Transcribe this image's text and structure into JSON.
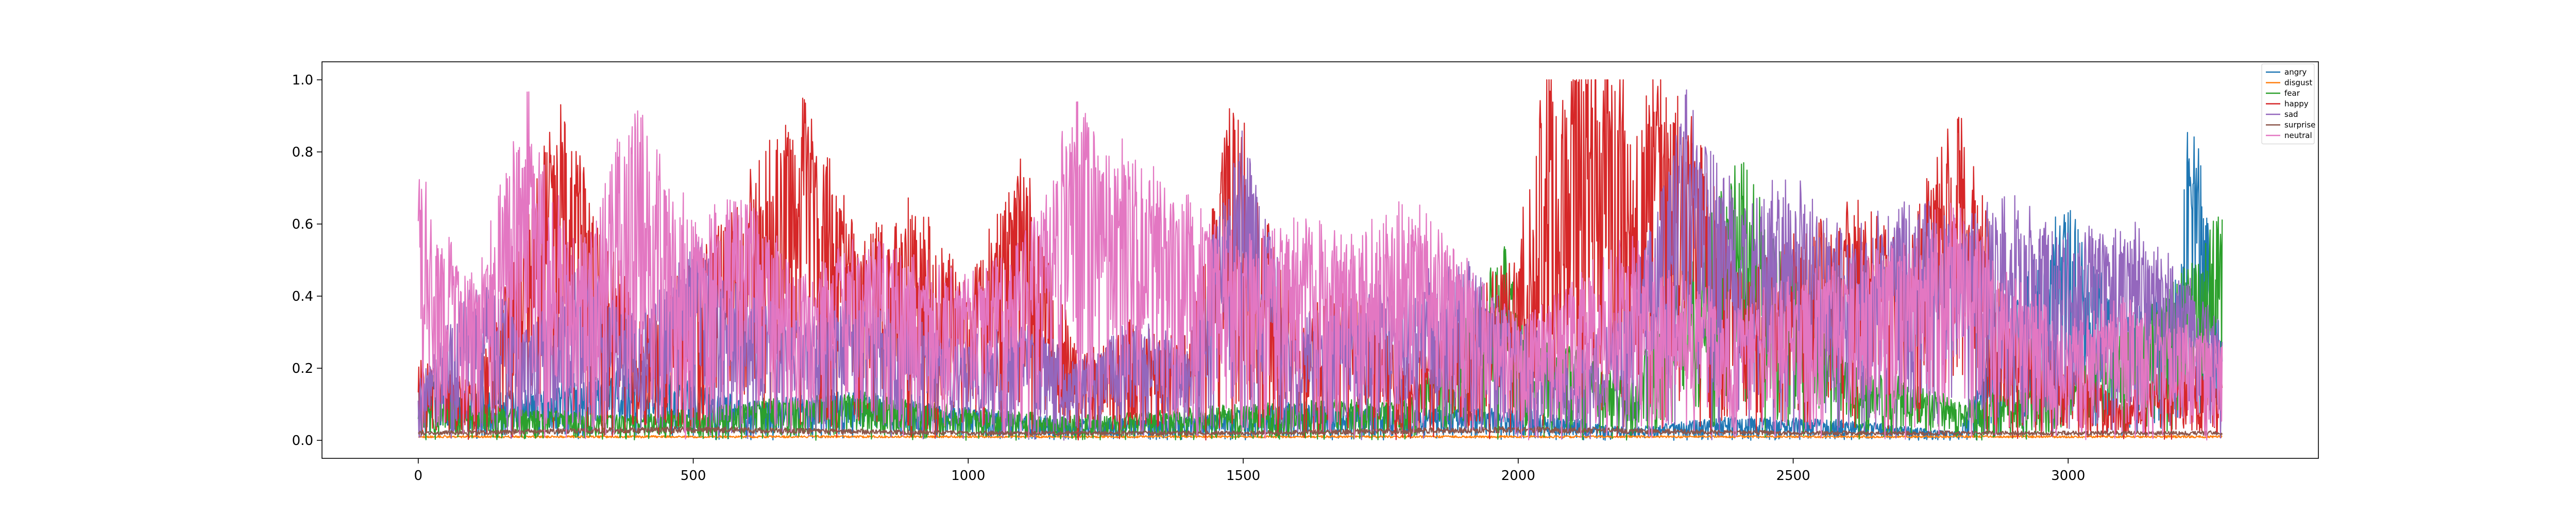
{
  "chart_data": {
    "type": "line",
    "title": "",
    "xlabel": "",
    "ylabel": "",
    "xlim": [
      -175,
      3455
    ],
    "ylim": [
      -0.05,
      1.05
    ],
    "x_range": [
      0,
      3280
    ],
    "xticks": [
      0,
      500,
      1000,
      1500,
      2000,
      2500,
      3000
    ],
    "xtick_labels": [
      "0",
      "500",
      "1000",
      "1500",
      "2000",
      "2500",
      "3000"
    ],
    "yticks": [
      0.0,
      0.2,
      0.4,
      0.6,
      0.8,
      1.0
    ],
    "ytick_labels": [
      "0.0",
      "0.2",
      "0.4",
      "0.6",
      "0.8",
      "1.0"
    ],
    "grid": false,
    "legend_position": "top-right",
    "series": [
      {
        "name": "angry",
        "color": "#1f77b4",
        "x": [
          0,
          200,
          400,
          600,
          800,
          1000,
          1200,
          1400,
          1600,
          1800,
          2000,
          2200,
          2400,
          2600,
          2800,
          2900,
          3000,
          3100,
          3200,
          3220,
          3280
        ],
        "values": [
          0.15,
          0.12,
          0.18,
          0.1,
          0.12,
          0.08,
          0.05,
          0.06,
          0.1,
          0.08,
          0.08,
          0.03,
          0.06,
          0.05,
          0.02,
          0.35,
          0.6,
          0.3,
          0.4,
          0.9,
          0.25
        ]
      },
      {
        "name": "disgust",
        "color": "#ff7f0e",
        "x": [
          0,
          500,
          1000,
          1500,
          2000,
          2500,
          3000,
          3280
        ],
        "values": [
          0.01,
          0.01,
          0.01,
          0.01,
          0.01,
          0.01,
          0.01,
          0.01
        ]
      },
      {
        "name": "fear",
        "color": "#2ca02c",
        "x": [
          0,
          200,
          400,
          600,
          800,
          1000,
          1200,
          1400,
          1600,
          1800,
          1980,
          2000,
          2200,
          2400,
          2600,
          2800,
          3000,
          3200,
          3280
        ],
        "values": [
          0.1,
          0.08,
          0.06,
          0.1,
          0.12,
          0.08,
          0.06,
          0.08,
          0.1,
          0.1,
          0.5,
          0.3,
          0.15,
          0.7,
          0.2,
          0.1,
          0.15,
          0.4,
          0.57
        ]
      },
      {
        "name": "happy",
        "color": "#d62728",
        "x": [
          0,
          100,
          260,
          400,
          500,
          700,
          800,
          900,
          1000,
          1100,
          1200,
          1300,
          1400,
          1480,
          1600,
          1700,
          1800,
          1900,
          2000,
          2050,
          2120,
          2200,
          2300,
          2400,
          2500,
          2600,
          2700,
          2800,
          2900,
          3000,
          3100,
          3200,
          3280
        ],
        "values": [
          0.2,
          0.15,
          0.85,
          0.3,
          0.45,
          0.85,
          0.5,
          0.6,
          0.4,
          0.7,
          0.2,
          0.3,
          0.25,
          0.87,
          0.3,
          0.4,
          0.2,
          0.3,
          0.5,
          0.9,
          1.0,
          0.9,
          0.85,
          0.45,
          0.5,
          0.6,
          0.5,
          0.83,
          0.3,
          0.2,
          0.1,
          0.2,
          0.15
        ]
      },
      {
        "name": "sad",
        "color": "#9467bd",
        "x": [
          0,
          100,
          200,
          300,
          400,
          500,
          600,
          700,
          800,
          900,
          1000,
          1100,
          1200,
          1300,
          1400,
          1500,
          1600,
          1700,
          1800,
          1900,
          2000,
          2100,
          2200,
          2300,
          2400,
          2500,
          2600,
          2700,
          2800,
          2900,
          3000,
          3100,
          3200,
          3280
        ],
        "values": [
          0.15,
          0.4,
          0.3,
          0.45,
          0.3,
          0.5,
          0.4,
          0.3,
          0.35,
          0.3,
          0.25,
          0.3,
          0.2,
          0.3,
          0.25,
          0.8,
          0.3,
          0.35,
          0.4,
          0.45,
          0.3,
          0.2,
          0.35,
          0.88,
          0.6,
          0.65,
          0.5,
          0.6,
          0.55,
          0.6,
          0.5,
          0.55,
          0.45,
          0.3
        ]
      },
      {
        "name": "surprise",
        "color": "#8c564b",
        "x": [
          0,
          500,
          1000,
          1500,
          2000,
          2500,
          3000,
          3280
        ],
        "values": [
          0.02,
          0.03,
          0.02,
          0.02,
          0.03,
          0.02,
          0.02,
          0.02
        ]
      },
      {
        "name": "neutral",
        "color": "#e377c2",
        "x": [
          0,
          30,
          100,
          200,
          250,
          300,
          390,
          500,
          600,
          700,
          800,
          900,
          1000,
          1100,
          1200,
          1300,
          1400,
          1500,
          1600,
          1700,
          1800,
          1900,
          2000,
          2100,
          2200,
          2300,
          2400,
          2500,
          2600,
          2700,
          2800,
          2900,
          3000,
          3100,
          3200,
          3280
        ],
        "values": [
          0.7,
          0.55,
          0.4,
          0.85,
          0.6,
          0.5,
          0.85,
          0.55,
          0.6,
          0.4,
          0.5,
          0.45,
          0.4,
          0.5,
          0.85,
          0.7,
          0.6,
          0.5,
          0.55,
          0.5,
          0.6,
          0.45,
          0.3,
          0.4,
          0.5,
          0.4,
          0.35,
          0.4,
          0.45,
          0.5,
          0.6,
          0.4,
          0.3,
          0.35,
          0.3,
          0.25
        ]
      }
    ]
  }
}
